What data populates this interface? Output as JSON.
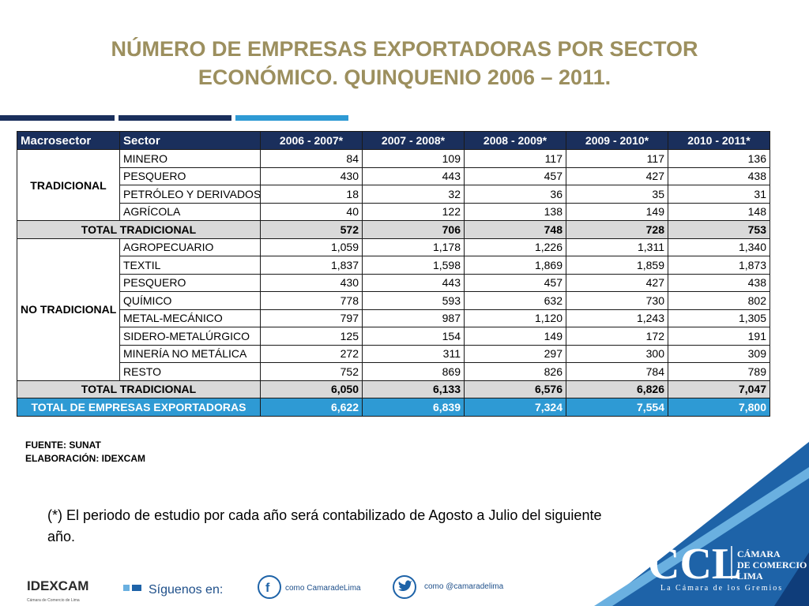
{
  "title": {
    "line1": "NÚMERO DE EMPRESAS EXPORTADORAS POR SECTOR",
    "line2": "ECONÓMICO. QUINQUENIO 2006 – 2011."
  },
  "table": {
    "headers": [
      "Macrosector",
      "Sector",
      "2006 - 2007*",
      "2007 - 2008*",
      "2008 - 2009*",
      "2009 - 2010*",
      "2010 - 2011*"
    ],
    "groups": [
      {
        "macro": "TRADICIONAL",
        "rows": [
          {
            "sector": "MINERO",
            "values": [
              "84",
              "109",
              "117",
              "117",
              "136"
            ]
          },
          {
            "sector": "PESQUERO",
            "values": [
              "430",
              "443",
              "457",
              "427",
              "438"
            ]
          },
          {
            "sector": "PETRÓLEO Y DERIVADOS",
            "values": [
              "18",
              "32",
              "36",
              "35",
              "31"
            ]
          },
          {
            "sector": "AGRÍCOLA",
            "values": [
              "40",
              "122",
              "138",
              "149",
              "148"
            ]
          }
        ],
        "total": {
          "label": "TOTAL TRADICIONAL",
          "values": [
            "572",
            "706",
            "748",
            "728",
            "753"
          ]
        }
      },
      {
        "macro": "NO TRADICIONAL",
        "rows": [
          {
            "sector": "AGROPECUARIO",
            "values": [
              "1,059",
              "1,178",
              "1,226",
              "1,311",
              "1,340"
            ]
          },
          {
            "sector": "TEXTIL",
            "values": [
              "1,837",
              "1,598",
              "1,869",
              "1,859",
              "1,873"
            ]
          },
          {
            "sector": "PESQUERO",
            "values": [
              "430",
              "443",
              "457",
              "427",
              "438"
            ]
          },
          {
            "sector": "QUÍMICO",
            "values": [
              "778",
              "593",
              "632",
              "730",
              "802"
            ]
          },
          {
            "sector": "METAL-MECÁNICO",
            "values": [
              "797",
              "987",
              "1,120",
              "1,243",
              "1,305"
            ]
          },
          {
            "sector": "SIDERO-METALÚRGICO",
            "values": [
              "125",
              "154",
              "149",
              "172",
              "191"
            ]
          },
          {
            "sector": "MINERÍA NO METÁLICA",
            "values": [
              "272",
              "311",
              "297",
              "300",
              "309"
            ]
          },
          {
            "sector": "RESTO",
            "values": [
              "752",
              "869",
              "826",
              "784",
              "789"
            ]
          }
        ],
        "total": {
          "label": "TOTAL TRADICIONAL",
          "values": [
            "6,050",
            "6,133",
            "6,576",
            "6,826",
            "7,047"
          ]
        }
      }
    ],
    "grand_total": {
      "label": "TOTAL DE EMPRESAS EXPORTADORAS",
      "values": [
        "6,622",
        "6,839",
        "7,324",
        "7,554",
        "7,800"
      ]
    }
  },
  "source": {
    "fuente": "FUENTE: SUNAT",
    "elaboracion": "ELABORACIÓN: IDEXCAM"
  },
  "note": "(*) El periodo de estudio por cada año será contabilizado de Agosto a Julio del siguiente año.",
  "branding": {
    "ccl_logo": "CCL",
    "ccl_name_1": "CÁMARA",
    "ccl_name_2": "DE COMERCIO",
    "ccl_name_3": "LIMA",
    "ccl_tagline": "La Cámara de los Gremios",
    "idexcam_logo": "IDEXCAM",
    "idexcam_sub": "Cámara de Comercio de Lima",
    "follow_text": "Síguenos en:",
    "facebook_handle": "como CamaradeLima",
    "twitter_handle": "como @camaradelima",
    "facebook_icon": "facebook-icon",
    "twitter_icon": "twitter-icon"
  },
  "colors": {
    "title": "#9c8f5e",
    "header_bg": "#1a2f5c",
    "accent_blue": "#2e9ad4",
    "total_bg": "#d9d9d9"
  }
}
